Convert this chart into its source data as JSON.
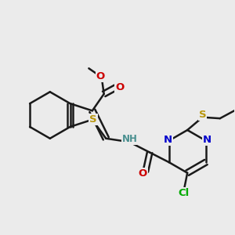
{
  "bg_color": "#ebebeb",
  "bond_color": "#1a1a1a",
  "bond_width": 1.8,
  "atom_colors": {
    "S": "#b8960c",
    "N": "#0000cc",
    "O": "#cc0000",
    "Cl": "#00aa00",
    "NH": "#4a9090",
    "C": "#1a1a1a"
  },
  "figsize": [
    3.0,
    3.0
  ],
  "dpi": 100
}
